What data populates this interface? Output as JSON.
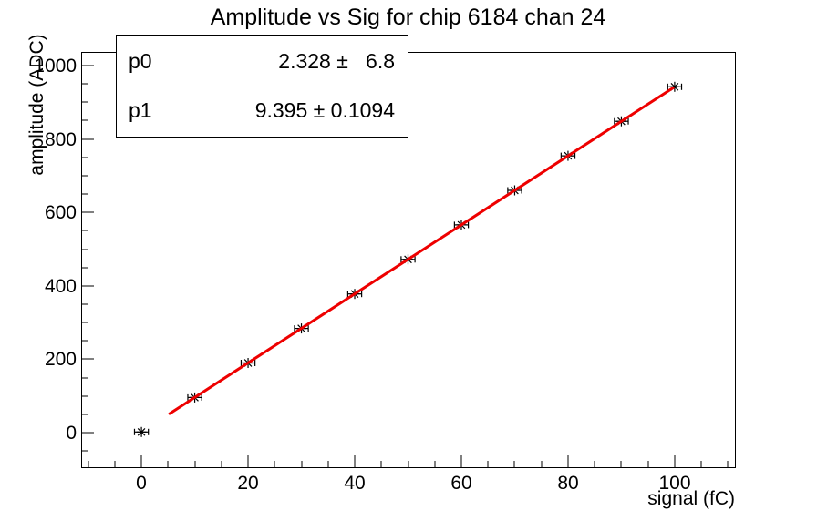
{
  "chart_data": {
    "type": "scatter",
    "title": "Amplitude vs Sig for chip 6184 chan 24",
    "xlabel": "signal (fC)",
    "ylabel": "amplitude (ADC)",
    "x": [
      0,
      10,
      20,
      30,
      40,
      50,
      60,
      70,
      80,
      90,
      100
    ],
    "y": [
      2,
      96,
      190,
      284,
      378,
      472,
      566,
      660,
      754,
      848,
      942
    ],
    "x_error": 1.3,
    "marker": "star",
    "marker_color": "#000000",
    "xlim": [
      -11.3,
      111.3
    ],
    "ylim": [
      -94,
      1037
    ],
    "x_major_ticks": [
      0,
      20,
      40,
      60,
      80,
      100
    ],
    "y_major_ticks": [
      0,
      200,
      400,
      600,
      800,
      1000
    ],
    "x_minor_step": 5,
    "y_minor_step": 50,
    "grid": false,
    "legend": "none",
    "fit": {
      "type": "linear",
      "p0": 2.328,
      "p0_err": 6.8,
      "p1": 9.395,
      "p1_err": 0.1094,
      "x_range": [
        5.3,
        99.7
      ],
      "color": "#ee0000"
    }
  },
  "stats": {
    "rows": [
      {
        "param": "p0",
        "value": "2.328 ±   6.8"
      },
      {
        "param": "p1",
        "value": "9.395 ± 0.1094"
      }
    ]
  }
}
